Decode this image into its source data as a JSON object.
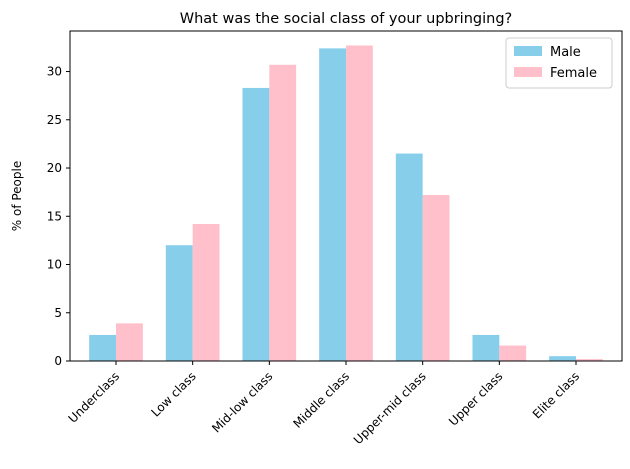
{
  "chart_data": {
    "type": "bar",
    "title": "What was the social class of your upbringing?",
    "xlabel": "",
    "ylabel": "% of People",
    "categories": [
      "Underclass",
      "Low class",
      "Mid-low class",
      "Middle class",
      "Upper-mid class",
      "Upper class",
      "Elite class"
    ],
    "series": [
      {
        "name": "Male",
        "color": "#87CEEB",
        "values": [
          2.7,
          12.0,
          28.3,
          32.4,
          21.5,
          2.7,
          0.5
        ]
      },
      {
        "name": "Female",
        "color": "#FFC0CB",
        "values": [
          3.9,
          14.2,
          30.7,
          32.7,
          17.2,
          1.6,
          0.2
        ]
      }
    ],
    "ylim": [
      0,
      34.2
    ],
    "yticks": [
      0,
      5,
      10,
      15,
      20,
      25,
      30
    ],
    "grid": false,
    "legend": "top-right"
  }
}
